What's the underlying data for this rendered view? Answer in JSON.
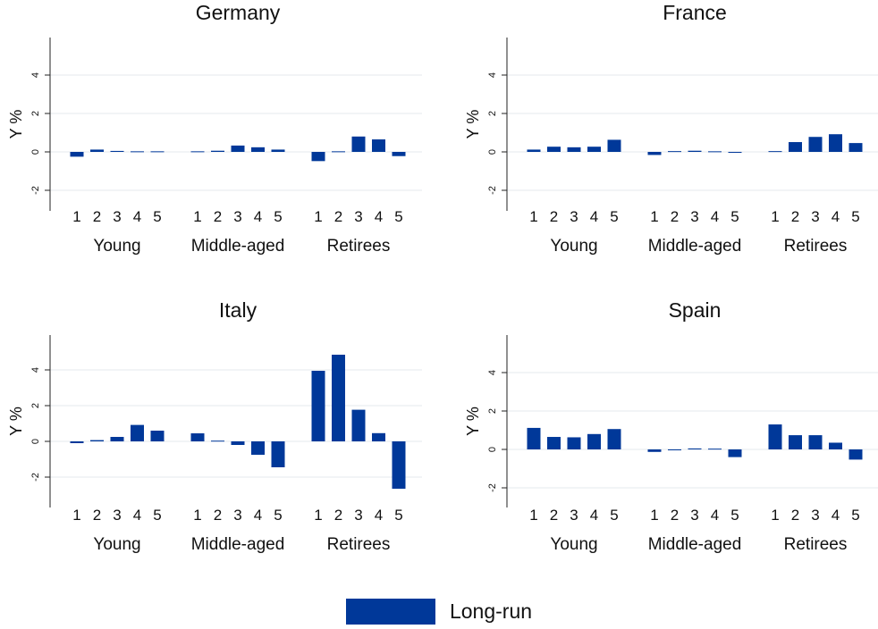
{
  "chart_data": {
    "type": "bar",
    "ylabel": "Y %",
    "ylim": [
      -3,
      6
    ],
    "yticks": [
      -2,
      0,
      2,
      4
    ],
    "ytick_labels": [
      "-2",
      "0",
      "2",
      "4"
    ],
    "grid": true,
    "groups": [
      "Young",
      "Middle-aged",
      "Retirees"
    ],
    "categories": [
      "1",
      "2",
      "3",
      "4",
      "5"
    ],
    "series": [
      {
        "name": "Long-run",
        "color": "#003899"
      }
    ],
    "legend": {
      "label": "Long-run",
      "placement": "bottom-center"
    },
    "panels": [
      {
        "title": "Germany",
        "values": [
          [
            -0.25,
            0.12,
            0.05,
            0.03,
            0.03
          ],
          [
            0.03,
            0.06,
            0.33,
            0.24,
            0.12
          ],
          [
            -0.48,
            0.03,
            0.8,
            0.65,
            -0.22
          ]
        ]
      },
      {
        "title": "France",
        "values": [
          [
            0.12,
            0.27,
            0.24,
            0.27,
            0.63
          ],
          [
            -0.16,
            0.04,
            0.06,
            0.03,
            -0.03
          ],
          [
            0.04,
            0.51,
            0.78,
            0.92,
            0.46
          ]
        ]
      },
      {
        "title": "Italy",
        "values": [
          [
            -0.1,
            0.07,
            0.25,
            0.92,
            0.6
          ],
          [
            0.45,
            0.04,
            -0.2,
            -0.75,
            -1.45
          ],
          [
            3.95,
            4.85,
            1.77,
            0.46,
            -2.65
          ]
        ]
      },
      {
        "title": "Spain",
        "values": [
          [
            1.12,
            0.65,
            0.63,
            0.8,
            1.06
          ],
          [
            -0.13,
            -0.04,
            0.05,
            0.04,
            -0.4
          ],
          [
            1.3,
            0.74,
            0.74,
            0.35,
            -0.53
          ]
        ]
      }
    ]
  }
}
